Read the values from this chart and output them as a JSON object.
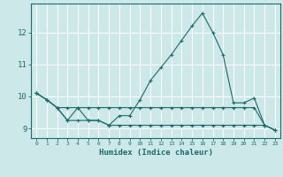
{
  "xlabel": "Humidex (Indice chaleur)",
  "ylabel": "",
  "background_color": "#cce8e8",
  "grid_color": "#ffffff",
  "line_color": "#1a6b6b",
  "x": [
    0,
    1,
    2,
    3,
    4,
    5,
    6,
    7,
    8,
    9,
    10,
    11,
    12,
    13,
    14,
    15,
    16,
    17,
    18,
    19,
    20,
    21,
    22,
    23
  ],
  "line1": [
    10.1,
    9.9,
    9.65,
    9.25,
    9.65,
    9.25,
    9.25,
    9.1,
    9.4,
    9.4,
    9.9,
    10.5,
    10.9,
    11.3,
    11.75,
    12.2,
    12.6,
    12.0,
    11.3,
    9.8,
    9.8,
    9.95,
    9.1,
    8.95
  ],
  "line2": [
    10.1,
    9.9,
    9.65,
    9.65,
    9.65,
    9.65,
    9.65,
    9.65,
    9.65,
    9.65,
    9.65,
    9.65,
    9.65,
    9.65,
    9.65,
    9.65,
    9.65,
    9.65,
    9.65,
    9.65,
    9.65,
    9.65,
    9.1,
    8.95
  ],
  "line3": [
    10.1,
    9.9,
    9.65,
    9.25,
    9.25,
    9.25,
    9.25,
    9.1,
    9.1,
    9.1,
    9.1,
    9.1,
    9.1,
    9.1,
    9.1,
    9.1,
    9.1,
    9.1,
    9.1,
    9.1,
    9.1,
    9.1,
    9.1,
    8.95
  ],
  "ylim": [
    8.7,
    12.9
  ],
  "xlim": [
    -0.5,
    23.5
  ],
  "yticks": [
    9,
    10,
    11,
    12
  ],
  "xticks": [
    0,
    1,
    2,
    3,
    4,
    5,
    6,
    7,
    8,
    9,
    10,
    11,
    12,
    13,
    14,
    15,
    16,
    17,
    18,
    19,
    20,
    21,
    22,
    23
  ]
}
